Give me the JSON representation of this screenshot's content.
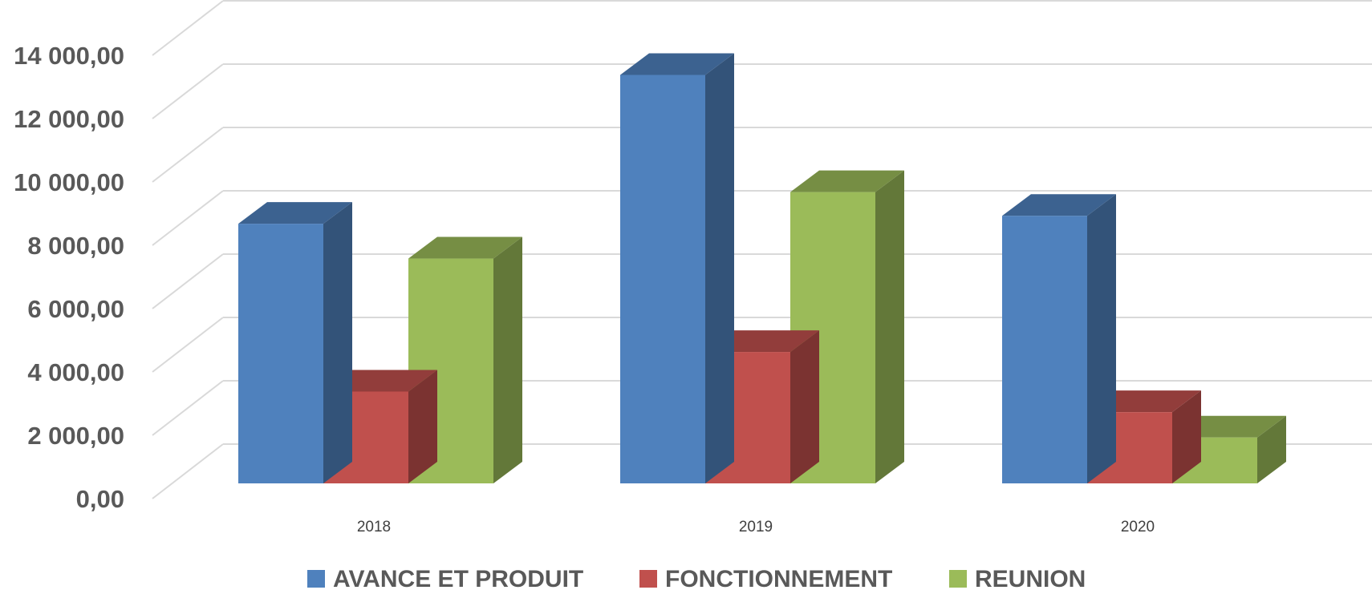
{
  "chart_data": {
    "type": "bar",
    "categories": [
      "2018",
      "2019",
      "2020"
    ],
    "series": [
      {
        "name": "AVANCE ET PRODUIT",
        "values": [
          8200,
          12900,
          8450
        ],
        "color": "#4F81BD"
      },
      {
        "name": "FONCTIONNEMENT",
        "values": [
          2900,
          4150,
          2250
        ],
        "color": "#C0504D"
      },
      {
        "name": "REUNION",
        "values": [
          7100,
          9200,
          1450
        ],
        "color": "#9BBB59"
      }
    ],
    "y_ticks": [
      "0,00",
      "2 000,00",
      "4 000,00",
      "6 000,00",
      "8 000,00",
      "10 000,00",
      "12 000,00",
      "14 000,00"
    ],
    "ylim": [
      0,
      16000
    ],
    "grid": true,
    "legend_position": "bottom",
    "style": "3d-clustered-column"
  }
}
